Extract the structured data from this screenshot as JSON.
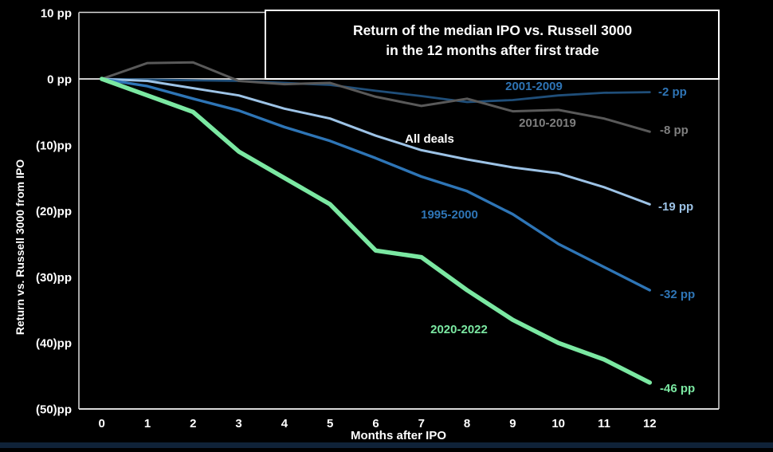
{
  "chart_data": {
    "type": "line",
    "title_line1": "Return of the median IPO vs. Russell 3000",
    "title_line2": "in the 12 months after first trade",
    "xlabel": "Months after IPO",
    "ylabel": "Return vs. Russell 3000 from IPO",
    "x": [
      0,
      1,
      2,
      3,
      4,
      5,
      6,
      7,
      8,
      9,
      10,
      11,
      12
    ],
    "x_tick_labels": [
      "0",
      "1",
      "2",
      "3",
      "4",
      "5",
      "6",
      "7",
      "8",
      "9",
      "10",
      "11",
      "12"
    ],
    "y_ticks": [
      {
        "label": "10 pp",
        "value": 10
      },
      {
        "label": "0 pp",
        "value": 0
      },
      {
        "label": "(10)pp",
        "value": -10
      },
      {
        "label": "(20)pp",
        "value": -20
      },
      {
        "label": "(30)pp",
        "value": -30
      },
      {
        "label": "(40)pp",
        "value": -40
      },
      {
        "label": "(50)pp",
        "value": -50
      }
    ],
    "xlim": [
      0,
      12
    ],
    "ylim": [
      -50,
      10
    ],
    "grid": false,
    "legend_position": "inline-labels",
    "series": [
      {
        "name": "2001-2009",
        "label": "2001-2009",
        "end_label": "-2 pp",
        "line_color": "#1F4E79",
        "label_color": "#2E74B5",
        "end_color": "#2E74B5",
        "values": [
          0,
          -0.1,
          -0.2,
          -0.3,
          -0.6,
          -0.9,
          -1.8,
          -2.6,
          -3.5,
          -3.2,
          -2.5,
          -2.1,
          -2
        ]
      },
      {
        "name": "2010-2019",
        "label": "2010-2019",
        "end_label": "-8 pp",
        "line_color": "#595959",
        "label_color": "#7F7F7F",
        "end_color": "#7F7F7F",
        "values": [
          0,
          2.4,
          2.5,
          -0.3,
          -0.8,
          -0.6,
          -2.7,
          -4.1,
          -3,
          -4.9,
          -4.7,
          -6,
          -8
        ]
      },
      {
        "name": "All deals",
        "label": "All deals",
        "end_label": "-19 pp",
        "line_color": "#9DC3E6",
        "label_color": "#FFFFFF",
        "end_color": "#9DC3E6",
        "values": [
          0,
          -0.3,
          -1.4,
          -2.5,
          -4.5,
          -6,
          -8.6,
          -10.8,
          -12.2,
          -13.4,
          -14.3,
          -16.4,
          -19
        ]
      },
      {
        "name": "1995-2000",
        "label": "1995-2000",
        "end_label": "-32 pp",
        "line_color": "#2E75B6",
        "label_color": "#2E75B6",
        "end_color": "#2E75B6",
        "values": [
          0,
          -1.1,
          -3,
          -4.8,
          -7.3,
          -9.4,
          -12,
          -14.8,
          -17,
          -20.5,
          -25,
          -28.5,
          -32
        ]
      },
      {
        "name": "2020-2022",
        "label": "2020-2022",
        "end_label": "-46 pp",
        "line_color": "#7BE8A2",
        "label_color": "#7BE8A2",
        "end_color": "#7BE8A2",
        "values": [
          0,
          -2.5,
          -5,
          -11,
          -15,
          -19,
          -26,
          -27,
          -32,
          -36.5,
          -40,
          -42.5,
          -46
        ]
      }
    ]
  },
  "colors": {
    "background": "#000000",
    "axis_line": "#A6A6A6",
    "border_line": "#C9C9C9",
    "zero_line": "#E8E8E8",
    "title_box_border": "#FFFFFF",
    "tick_text": "#FFFFFF",
    "axis_title_text": "#FFFFFF"
  }
}
